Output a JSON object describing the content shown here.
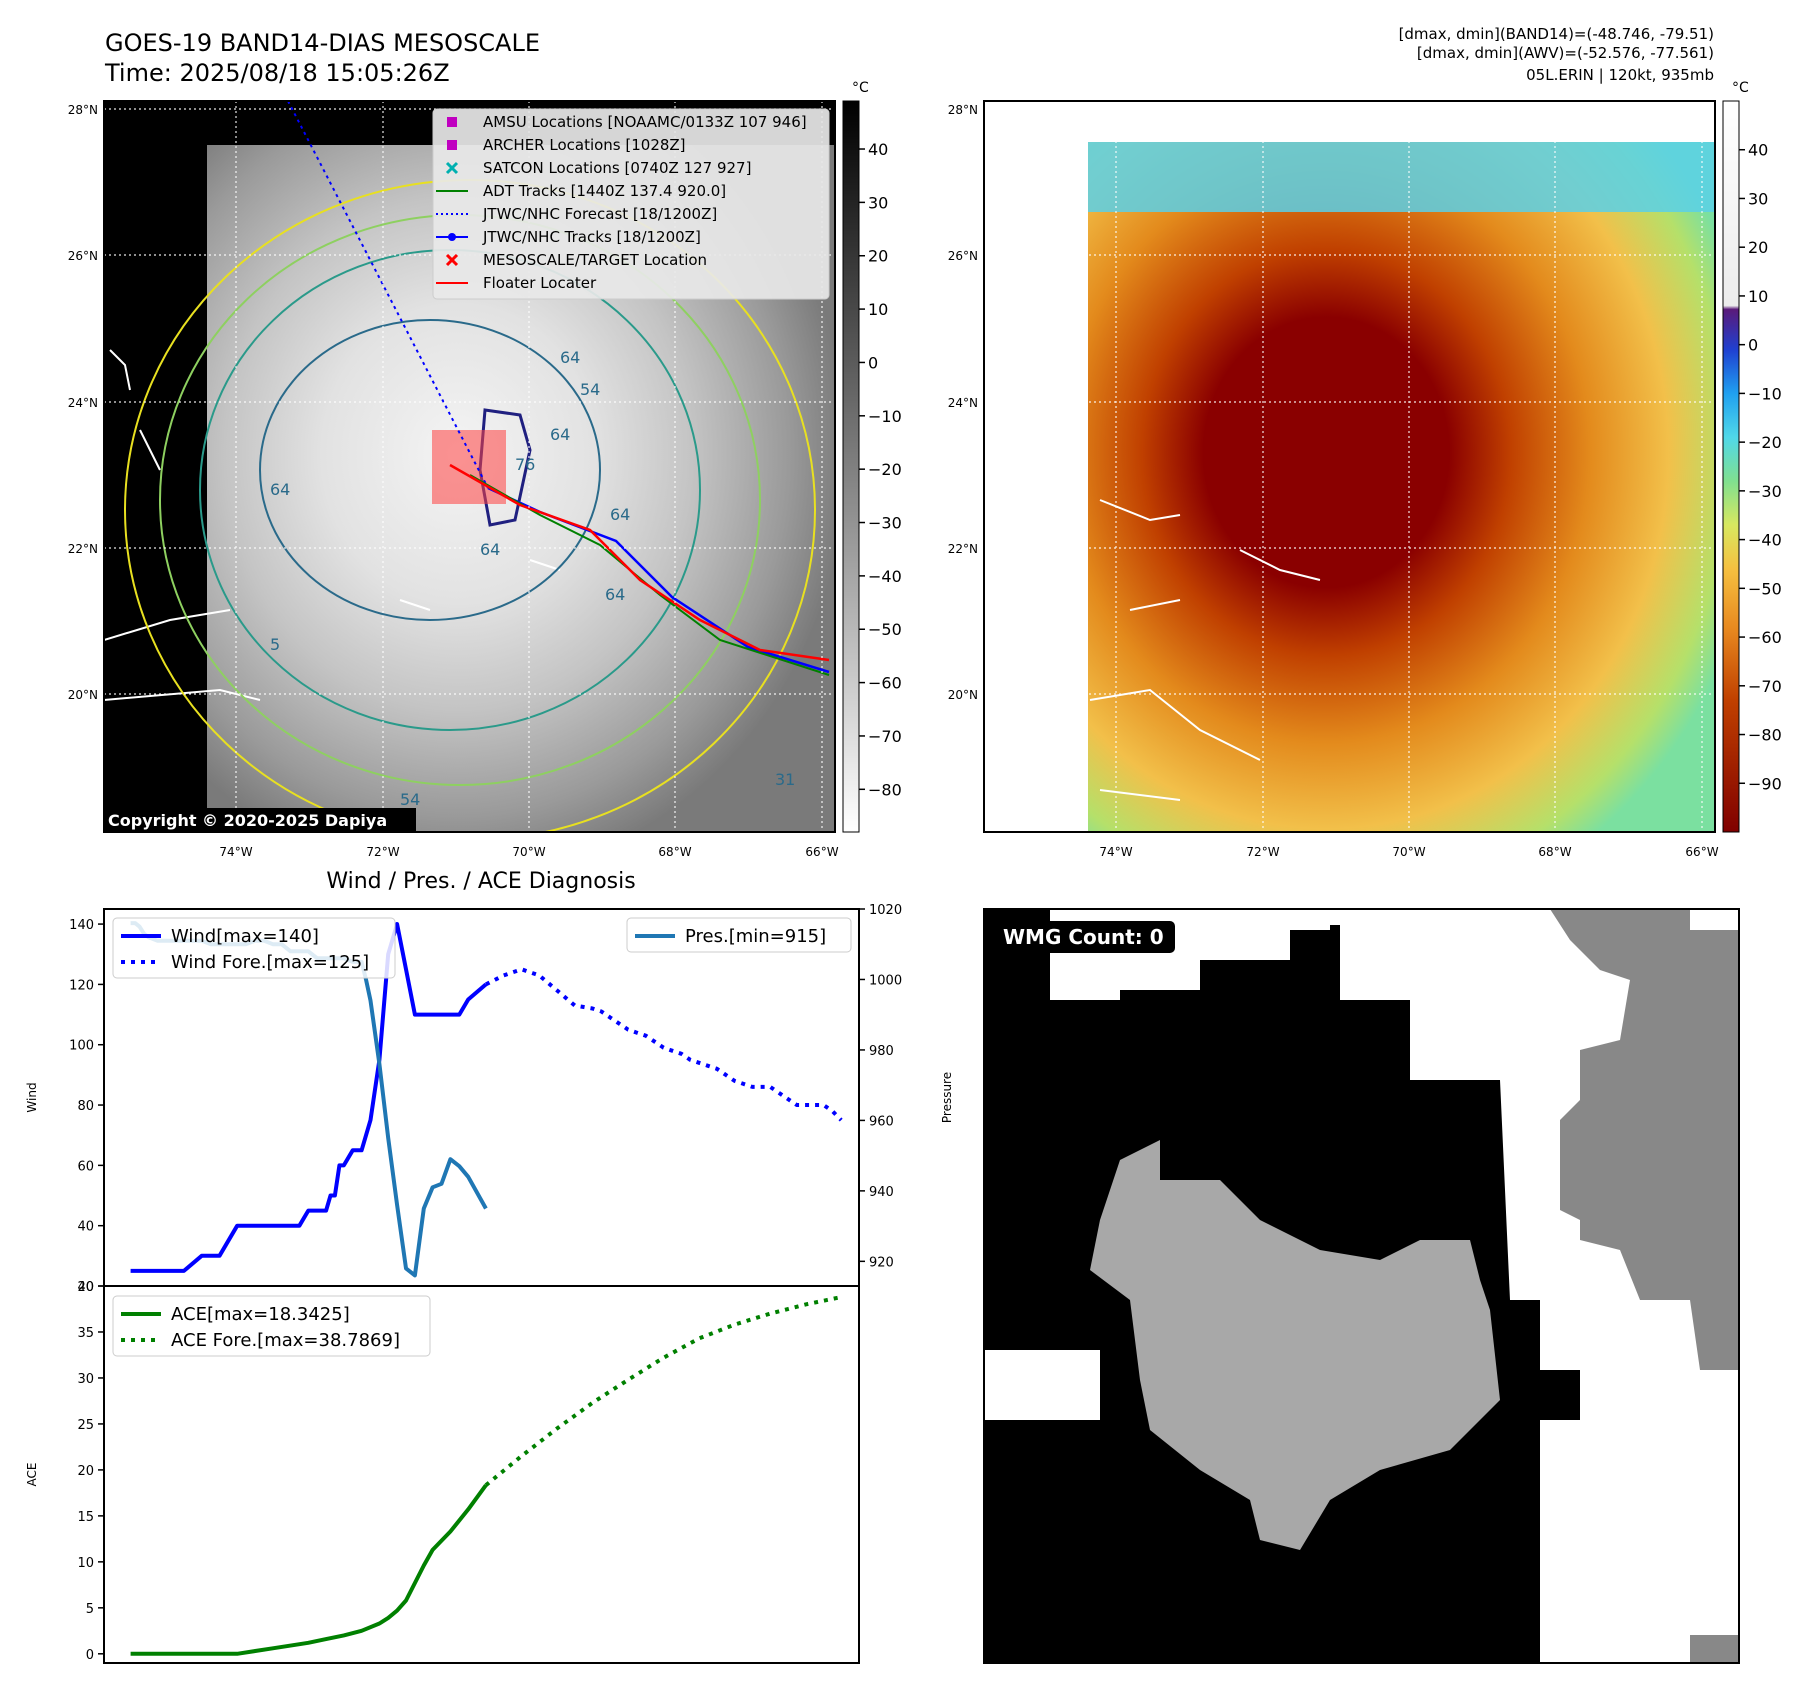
{
  "header": {
    "title_line1": "GOES-19 BAND14-DIAS MESOSCALE",
    "title_line2": "Time: 2025/08/18 15:05:26Z",
    "info_line1": "[dmax, dmin](BAND14)=(-48.746, -79.51)",
    "info_line2": "[dmax, dmin](AWV)=(-52.576, -77.561)",
    "info_line3": "05L.ERIN | 120kt, 935mb"
  },
  "map_axes": {
    "lat_labels": [
      "28°N",
      "26°N",
      "24°N",
      "22°N",
      "20°N"
    ],
    "lon_labels": [
      "74°W",
      "72°W",
      "70°W",
      "68°W",
      "66°W"
    ]
  },
  "ir_panel": {
    "colorbar_unit": "°C",
    "colorbar_ticks": [
      "40",
      "30",
      "20",
      "10",
      "0",
      "−10",
      "−20",
      "−30",
      "−40",
      "−50",
      "−60",
      "−70",
      "−80"
    ],
    "copyright": "Copyright © 2020-2025 Dapiya",
    "legend": [
      {
        "label": "AMSU Locations [NOAAMC/0133Z 107 946]",
        "marker": "square",
        "color": "#c000c0"
      },
      {
        "label": "ARCHER Locations [1028Z]",
        "marker": "square",
        "color": "#c000c0"
      },
      {
        "label": "SATCON Locations [0740Z 127 927]",
        "marker": "x",
        "color": "#00b0b0"
      },
      {
        "label": "ADT Tracks [1440Z 137.4 920.0]",
        "marker": "line",
        "color": "#008000"
      },
      {
        "label": "JTWC/NHC Forecast [18/1200Z]",
        "marker": "dotted",
        "color": "#0000ff"
      },
      {
        "label": "JTWC/NHC Tracks [18/1200Z]",
        "marker": "line-dot",
        "color": "#0000ff"
      },
      {
        "label": "MESOSCALE/TARGET Location",
        "marker": "x",
        "color": "#ff0000"
      },
      {
        "label": "Floater Locater",
        "marker": "line",
        "color": "#ff0000"
      }
    ],
    "contour_labels": [
      "64",
      "54",
      "64",
      "76",
      "64",
      "64",
      "64",
      "5",
      "64",
      "54",
      "31"
    ]
  },
  "color_panel": {
    "colorbar_unit": "°C",
    "colorbar_ticks": [
      "40",
      "30",
      "20",
      "10",
      "0",
      "−10",
      "−20",
      "−30",
      "−40",
      "−50",
      "−60",
      "−70",
      "−80",
      "−90"
    ]
  },
  "wmg_panel": {
    "badge": "WMG Count: 0"
  },
  "chart_data": [
    {
      "type": "line",
      "title": "Wind / Pres. / ACE Diagnosis",
      "ylabel": "Wind",
      "ylabel_right": "Pressure",
      "ylim": [
        20,
        145
      ],
      "ylim_right": [
        913,
        1020
      ],
      "yticks": [
        20,
        40,
        60,
        80,
        100,
        120,
        140
      ],
      "yticks_right": [
        920,
        940,
        960,
        980,
        1000,
        1020
      ],
      "grid": false,
      "series": [
        {
          "name": "Wind[max=140]",
          "color": "#0000ff",
          "style": "solid",
          "axis": "left",
          "x": [
            0,
            2,
            4,
            6,
            8,
            10,
            12,
            14,
            16,
            18,
            19,
            20,
            21,
            22,
            22.5,
            23,
            23.5,
            24,
            25,
            26,
            27,
            28,
            29,
            30,
            31,
            32,
            33,
            34,
            35,
            36,
            37,
            38,
            40
          ],
          "values": [
            25,
            25,
            25,
            25,
            30,
            30,
            40,
            40,
            40,
            40,
            40,
            45,
            45,
            45,
            50,
            50,
            60,
            60,
            65,
            65,
            75,
            95,
            130,
            140,
            125,
            110,
            110,
            110,
            110,
            110,
            110,
            115,
            120
          ]
        },
        {
          "name": "Wind Fore.[max=125]",
          "color": "#0000ff",
          "style": "dotted",
          "axis": "left",
          "x": [
            40,
            42,
            44,
            46,
            48,
            50,
            52,
            53,
            54,
            55,
            56,
            57,
            58,
            59,
            60,
            61,
            62,
            63,
            64,
            65,
            66,
            67,
            68,
            69,
            70,
            71,
            72,
            73,
            74,
            75,
            76,
            77,
            78,
            79,
            80
          ],
          "values": [
            120,
            123,
            125,
            123,
            118,
            113,
            112,
            111,
            109,
            107,
            105,
            104,
            103,
            101,
            99,
            98,
            97,
            95,
            94,
            93,
            92,
            90,
            88,
            87,
            86,
            86,
            86,
            84,
            82,
            80,
            80,
            80,
            80,
            78,
            75
          ]
        },
        {
          "name": "Pres.[min=915]",
          "color": "#1f77b4",
          "style": "solid",
          "axis": "right",
          "x": [
            0,
            0.5,
            1,
            1.5,
            2,
            3,
            4,
            5,
            6,
            7,
            8,
            9,
            10,
            11,
            12,
            13,
            14,
            15,
            16,
            17,
            18,
            19,
            20,
            21,
            22,
            23,
            24,
            25,
            26,
            26.5,
            27,
            28,
            29,
            30,
            31,
            32,
            33,
            34,
            35,
            36,
            37,
            38,
            40
          ],
          "values": [
            1016,
            1016,
            1015,
            1013,
            1012,
            1011,
            1011,
            1011,
            1011,
            1011,
            1011,
            1010,
            1010,
            1010,
            1010,
            1010,
            1011,
            1011,
            1010,
            1010,
            1008,
            1008,
            1008,
            1006,
            1006,
            1006,
            1006,
            1005,
            1005,
            1000,
            994,
            976,
            955,
            936,
            918,
            916,
            935,
            941,
            942,
            949,
            947,
            944,
            935
          ]
        }
      ]
    },
    {
      "type": "line",
      "ylabel": "ACE",
      "ylim": [
        -1,
        40
      ],
      "yticks": [
        0,
        5,
        10,
        15,
        20,
        25,
        30,
        35,
        40
      ],
      "grid": false,
      "series": [
        {
          "name": "ACE[max=18.3425]",
          "color": "#008000",
          "style": "solid",
          "x": [
            0,
            4,
            8,
            12,
            16,
            20,
            22,
            24,
            26,
            28,
            29,
            30,
            31,
            32,
            33,
            34,
            36,
            38,
            40
          ],
          "values": [
            0,
            0,
            0,
            0,
            0.6,
            1.2,
            1.6,
            2.0,
            2.5,
            3.3,
            3.9,
            4.7,
            5.8,
            7.7,
            9.6,
            11.3,
            13.3,
            15.7,
            18.34
          ]
        },
        {
          "name": "ACE Fore.[max=38.7869]",
          "color": "#008000",
          "style": "dotted",
          "x": [
            40,
            44,
            48,
            52,
            56,
            60,
            64,
            68,
            72,
            76,
            80
          ],
          "values": [
            18.34,
            21.5,
            24.5,
            27.3,
            29.8,
            32.2,
            34.3,
            35.8,
            37.0,
            38.0,
            38.79
          ]
        }
      ]
    }
  ]
}
